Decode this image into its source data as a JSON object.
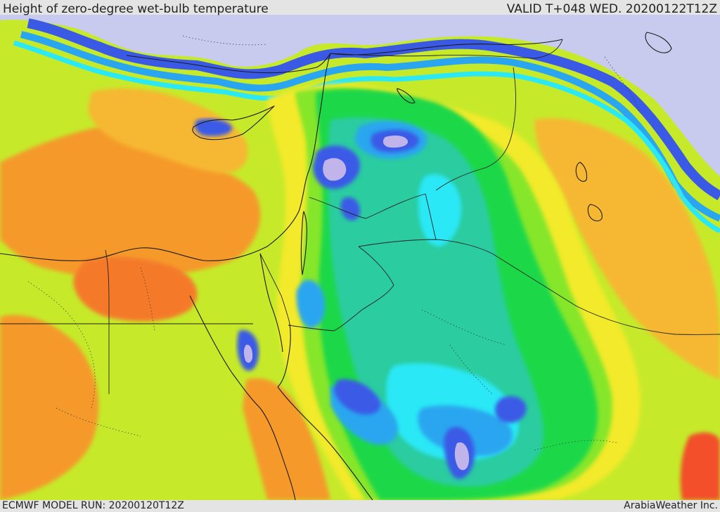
{
  "header": {
    "title": "Height of zero-degree wet-bulb temperature",
    "valid": "VALID T+048 WED. 20200122T12Z"
  },
  "footer": {
    "model_run": "ECMWF MODEL RUN: 20200120T12Z",
    "credit": "ArabiaWeather Inc."
  },
  "palette": {
    "sea_cold": "#c8cbee",
    "violet": "#c0b4ea",
    "blue": "#3a5ae6",
    "light_blue": "#2aa6f0",
    "cyan": "#2ae8f6",
    "teal": "#2ccca0",
    "green": "#1ed84a",
    "light_green": "#86e62a",
    "lime": "#c6ea2a",
    "yellow": "#f2ea2a",
    "orange_yellow": "#f6b830",
    "orange": "#f59a2a",
    "dark_orange": "#f47a2a",
    "red_orange": "#f2502a",
    "border": "#222222",
    "coast": "#1a1a1a"
  }
}
